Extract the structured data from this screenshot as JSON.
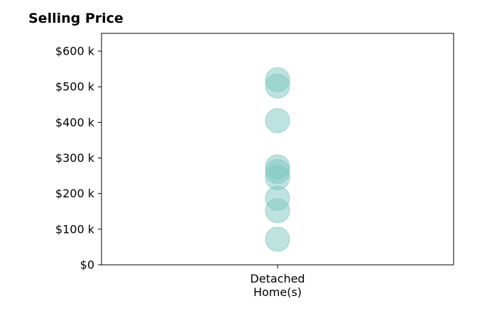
{
  "chart_data": {
    "type": "scatter",
    "title": "Selling Price",
    "xlabel": "",
    "ylabel": "",
    "categories": [
      [
        "Detached",
        "Home(s)"
      ]
    ],
    "y_ticks": [
      "$0",
      "$100 k",
      "$200 k",
      "$300 k",
      "$400 k",
      "$500 k",
      "$600 k"
    ],
    "y_tick_values": [
      0,
      100000,
      200000,
      300000,
      400000,
      500000,
      600000
    ],
    "ylim": [
      0,
      650000
    ],
    "grid": false,
    "marker_color": "#7ec8c0",
    "points": [
      {
        "category": 0,
        "y": 72000
      },
      {
        "category": 0,
        "y": 152000
      },
      {
        "category": 0,
        "y": 187000
      },
      {
        "category": 0,
        "y": 245000
      },
      {
        "category": 0,
        "y": 262000
      },
      {
        "category": 0,
        "y": 275000
      },
      {
        "category": 0,
        "y": 405000
      },
      {
        "category": 0,
        "y": 502000
      },
      {
        "category": 0,
        "y": 520000
      }
    ]
  }
}
